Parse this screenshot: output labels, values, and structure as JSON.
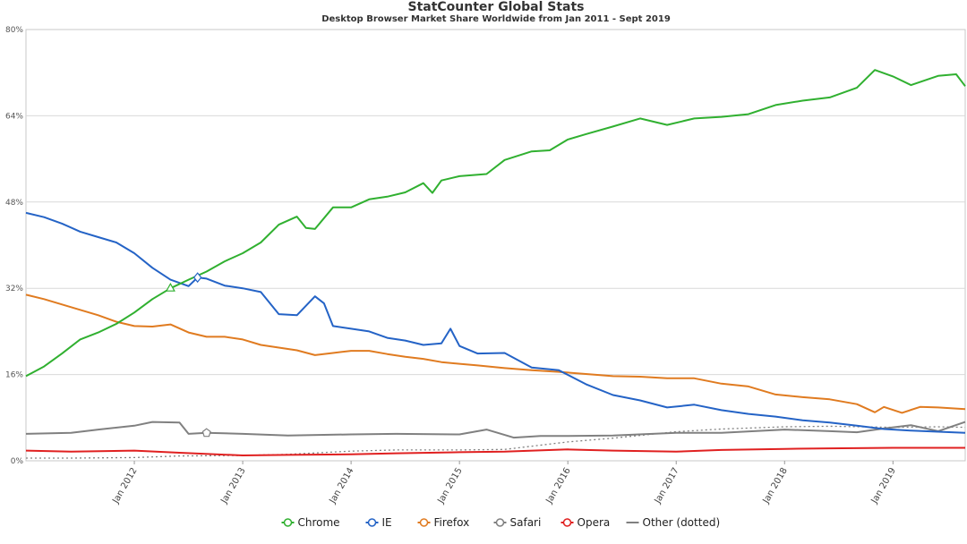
{
  "chart_data": {
    "type": "line",
    "title": "StatCounter Global Stats",
    "subtitle": "Desktop Browser Market Share Worldwide from Jan 2011 - Sept 2019",
    "ylim": [
      0,
      80
    ],
    "yticks": [
      0,
      16,
      32,
      48,
      64,
      80
    ],
    "ytick_labels": [
      "0%",
      "16%",
      "32%",
      "48%",
      "64%",
      "80%"
    ],
    "x_start": "2011-01",
    "x_end": "2019-09",
    "xticks": [
      "2012-01",
      "2013-01",
      "2014-01",
      "2015-01",
      "2016-01",
      "2017-01",
      "2018-01",
      "2019-01"
    ],
    "xtick_labels": [
      "Jan 2012",
      "Jan 2013",
      "Jan 2014",
      "Jan 2015",
      "Jan 2016",
      "Jan 2017",
      "Jan 2018",
      "Jan 2019"
    ],
    "grid": true,
    "legend_position": "bottom-center",
    "series": [
      {
        "name": "Chrome",
        "color": "#30b030",
        "dotted": false,
        "points": [
          [
            "2011-01",
            15.7
          ],
          [
            "2011-03",
            17.5
          ],
          [
            "2011-05",
            19.9
          ],
          [
            "2011-07",
            22.5
          ],
          [
            "2011-09",
            23.8
          ],
          [
            "2011-11",
            25.4
          ],
          [
            "2012-01",
            27.5
          ],
          [
            "2012-03",
            30.0
          ],
          [
            "2012-05",
            32.0
          ],
          [
            "2012-07",
            33.6
          ],
          [
            "2012-09",
            35.1
          ],
          [
            "2012-11",
            37.0
          ],
          [
            "2013-01",
            38.5
          ],
          [
            "2013-03",
            40.5
          ],
          [
            "2013-05",
            43.8
          ],
          [
            "2013-07",
            45.3
          ],
          [
            "2013-08",
            43.2
          ],
          [
            "2013-09",
            43.0
          ],
          [
            "2013-11",
            47.0
          ],
          [
            "2014-01",
            47.0
          ],
          [
            "2014-03",
            48.5
          ],
          [
            "2014-05",
            49.0
          ],
          [
            "2014-07",
            49.8
          ],
          [
            "2014-09",
            51.5
          ],
          [
            "2014-10",
            49.7
          ],
          [
            "2014-11",
            52.0
          ],
          [
            "2015-01",
            52.8
          ],
          [
            "2015-04",
            53.2
          ],
          [
            "2015-06",
            55.8
          ],
          [
            "2015-09",
            57.4
          ],
          [
            "2015-11",
            57.6
          ],
          [
            "2016-01",
            59.6
          ],
          [
            "2016-03",
            60.6
          ],
          [
            "2016-06",
            62.0
          ],
          [
            "2016-09",
            63.5
          ],
          [
            "2016-12",
            62.3
          ],
          [
            "2017-03",
            63.5
          ],
          [
            "2017-06",
            63.8
          ],
          [
            "2017-09",
            64.3
          ],
          [
            "2017-12",
            66.0
          ],
          [
            "2018-03",
            66.8
          ],
          [
            "2018-06",
            67.4
          ],
          [
            "2018-09",
            69.2
          ],
          [
            "2018-11",
            72.5
          ],
          [
            "2019-01",
            71.3
          ],
          [
            "2019-03",
            69.7
          ],
          [
            "2019-06",
            71.4
          ],
          [
            "2019-08",
            71.7
          ],
          [
            "2019-09",
            69.5
          ]
        ]
      },
      {
        "name": "IE",
        "color": "#2463c6",
        "dotted": false,
        "points": [
          [
            "2011-01",
            46.0
          ],
          [
            "2011-03",
            45.2
          ],
          [
            "2011-05",
            44.0
          ],
          [
            "2011-07",
            42.5
          ],
          [
            "2011-09",
            41.5
          ],
          [
            "2011-11",
            40.5
          ],
          [
            "2012-01",
            38.5
          ],
          [
            "2012-03",
            35.8
          ],
          [
            "2012-05",
            33.6
          ],
          [
            "2012-07",
            32.4
          ],
          [
            "2012-08",
            34.0
          ],
          [
            "2012-09",
            33.8
          ],
          [
            "2012-11",
            32.5
          ],
          [
            "2013-01",
            32.0
          ],
          [
            "2013-03",
            31.3
          ],
          [
            "2013-05",
            27.2
          ],
          [
            "2013-07",
            27.0
          ],
          [
            "2013-09",
            30.5
          ],
          [
            "2013-10",
            29.2
          ],
          [
            "2013-11",
            25.0
          ],
          [
            "2014-01",
            24.5
          ],
          [
            "2014-03",
            24.0
          ],
          [
            "2014-05",
            22.8
          ],
          [
            "2014-07",
            22.3
          ],
          [
            "2014-09",
            21.5
          ],
          [
            "2014-11",
            21.8
          ],
          [
            "2014-12",
            24.5
          ],
          [
            "2015-01",
            21.3
          ],
          [
            "2015-03",
            19.9
          ],
          [
            "2015-06",
            20.0
          ],
          [
            "2015-09",
            17.3
          ],
          [
            "2015-12",
            16.8
          ],
          [
            "2016-03",
            14.2
          ],
          [
            "2016-06",
            12.2
          ],
          [
            "2016-09",
            11.2
          ],
          [
            "2016-12",
            9.9
          ],
          [
            "2017-03",
            10.4
          ],
          [
            "2017-06",
            9.4
          ],
          [
            "2017-09",
            8.7
          ],
          [
            "2017-12",
            8.2
          ],
          [
            "2018-03",
            7.5
          ],
          [
            "2018-06",
            7.1
          ],
          [
            "2018-09",
            6.5
          ],
          [
            "2018-12",
            5.9
          ],
          [
            "2019-03",
            5.6
          ],
          [
            "2019-06",
            5.4
          ],
          [
            "2019-09",
            5.2
          ]
        ]
      },
      {
        "name": "Firefox",
        "color": "#e07b20",
        "dotted": false,
        "points": [
          [
            "2011-01",
            30.8
          ],
          [
            "2011-03",
            30.0
          ],
          [
            "2011-05",
            29.0
          ],
          [
            "2011-07",
            28.0
          ],
          [
            "2011-09",
            27.0
          ],
          [
            "2011-11",
            25.8
          ],
          [
            "2012-01",
            25.0
          ],
          [
            "2012-03",
            24.9
          ],
          [
            "2012-05",
            25.3
          ],
          [
            "2012-07",
            23.8
          ],
          [
            "2012-09",
            23.0
          ],
          [
            "2012-11",
            23.0
          ],
          [
            "2013-01",
            22.5
          ],
          [
            "2013-03",
            21.5
          ],
          [
            "2013-05",
            21.0
          ],
          [
            "2013-07",
            20.5
          ],
          [
            "2013-09",
            19.6
          ],
          [
            "2013-11",
            20.0
          ],
          [
            "2014-01",
            20.4
          ],
          [
            "2014-03",
            20.4
          ],
          [
            "2014-05",
            19.8
          ],
          [
            "2014-07",
            19.3
          ],
          [
            "2014-09",
            18.9
          ],
          [
            "2014-11",
            18.3
          ],
          [
            "2015-01",
            18.0
          ],
          [
            "2015-03",
            17.7
          ],
          [
            "2015-06",
            17.2
          ],
          [
            "2015-09",
            16.8
          ],
          [
            "2015-12",
            16.5
          ],
          [
            "2016-03",
            16.1
          ],
          [
            "2016-06",
            15.7
          ],
          [
            "2016-09",
            15.6
          ],
          [
            "2016-12",
            15.3
          ],
          [
            "2017-03",
            15.3
          ],
          [
            "2017-06",
            14.3
          ],
          [
            "2017-09",
            13.8
          ],
          [
            "2017-12",
            12.3
          ],
          [
            "2018-03",
            11.8
          ],
          [
            "2018-06",
            11.4
          ],
          [
            "2018-09",
            10.5
          ],
          [
            "2018-11",
            9.0
          ],
          [
            "2018-12",
            10.0
          ],
          [
            "2019-02",
            8.9
          ],
          [
            "2019-04",
            10.0
          ],
          [
            "2019-06",
            9.9
          ],
          [
            "2019-09",
            9.6
          ]
        ]
      },
      {
        "name": "Safari",
        "color": "#808080",
        "dotted": false,
        "points": [
          [
            "2011-01",
            5.0
          ],
          [
            "2011-06",
            5.2
          ],
          [
            "2011-09",
            5.8
          ],
          [
            "2012-01",
            6.5
          ],
          [
            "2012-03",
            7.2
          ],
          [
            "2012-06",
            7.1
          ],
          [
            "2012-07",
            5.0
          ],
          [
            "2012-09",
            5.2
          ],
          [
            "2013-01",
            5.0
          ],
          [
            "2013-06",
            4.7
          ],
          [
            "2014-01",
            4.9
          ],
          [
            "2014-06",
            5.0
          ],
          [
            "2015-01",
            4.9
          ],
          [
            "2015-04",
            5.8
          ],
          [
            "2015-07",
            4.3
          ],
          [
            "2015-10",
            4.6
          ],
          [
            "2016-01",
            4.6
          ],
          [
            "2016-06",
            4.7
          ],
          [
            "2017-01",
            5.2
          ],
          [
            "2017-06",
            5.2
          ],
          [
            "2018-01",
            5.8
          ],
          [
            "2018-06",
            5.5
          ],
          [
            "2018-09",
            5.3
          ],
          [
            "2018-12",
            6.0
          ],
          [
            "2019-03",
            6.6
          ],
          [
            "2019-06",
            5.5
          ],
          [
            "2019-09",
            7.2
          ]
        ]
      },
      {
        "name": "Opera",
        "color": "#e02020",
        "dotted": false,
        "points": [
          [
            "2011-01",
            1.9
          ],
          [
            "2011-06",
            1.7
          ],
          [
            "2012-01",
            1.9
          ],
          [
            "2012-06",
            1.5
          ],
          [
            "2013-01",
            1.0
          ],
          [
            "2013-06",
            1.1
          ],
          [
            "2014-01",
            1.2
          ],
          [
            "2014-06",
            1.4
          ],
          [
            "2015-01",
            1.6
          ],
          [
            "2015-06",
            1.7
          ],
          [
            "2016-01",
            2.1
          ],
          [
            "2016-06",
            1.9
          ],
          [
            "2017-01",
            1.7
          ],
          [
            "2017-06",
            2.0
          ],
          [
            "2018-01",
            2.2
          ],
          [
            "2018-06",
            2.3
          ],
          [
            "2019-01",
            2.4
          ],
          [
            "2019-09",
            2.4
          ]
        ]
      },
      {
        "name": "Other (dotted)",
        "color": "#808080",
        "dotted": true,
        "points": [
          [
            "2011-01",
            0.5
          ],
          [
            "2011-06",
            0.5
          ],
          [
            "2012-01",
            0.6
          ],
          [
            "2012-06",
            0.9
          ],
          [
            "2013-01",
            1.0
          ],
          [
            "2013-06",
            1.2
          ],
          [
            "2014-01",
            1.8
          ],
          [
            "2014-06",
            2.0
          ],
          [
            "2015-01",
            2.0
          ],
          [
            "2015-06",
            2.1
          ],
          [
            "2016-01",
            3.5
          ],
          [
            "2016-06",
            4.2
          ],
          [
            "2017-01",
            5.4
          ],
          [
            "2017-06",
            5.9
          ],
          [
            "2018-01",
            6.3
          ],
          [
            "2018-06",
            6.4
          ],
          [
            "2019-01",
            6.2
          ],
          [
            "2019-06",
            6.3
          ],
          [
            "2019-09",
            6.2
          ]
        ]
      }
    ]
  }
}
